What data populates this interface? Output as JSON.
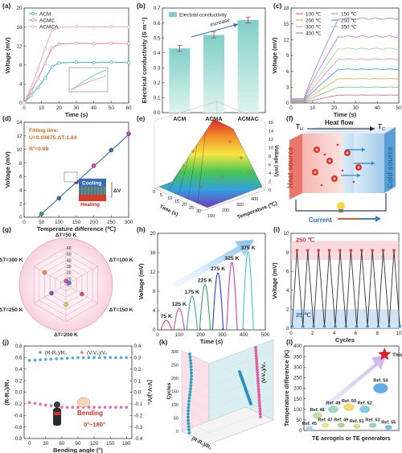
{
  "chart_data": [
    {
      "panel": "(a)",
      "type": "line",
      "ylabel": "Voltage (mV)",
      "xlabel": "Time (s)",
      "xlim": [
        0,
        60
      ],
      "ylim": [
        0,
        20
      ],
      "xticks": [
        0,
        10,
        20,
        30,
        40,
        50,
        60
      ],
      "yticks": [
        0,
        4,
        8,
        12,
        16,
        20
      ],
      "series": [
        {
          "name": "ACM",
          "color": "#3fb8c9",
          "x": [
            0,
            4,
            8,
            12,
            16,
            20,
            30,
            40,
            50,
            60
          ],
          "y": [
            0,
            1.6,
            3.3,
            5.2,
            7.6,
            8.4,
            8.6,
            8.5,
            8.6,
            8.5
          ]
        },
        {
          "name": "ACMC",
          "color": "#e58aa6",
          "x": [
            0,
            4,
            8,
            12,
            16,
            20,
            30,
            40,
            50,
            60
          ],
          "y": [
            0,
            2.4,
            5.2,
            8.3,
            11.6,
            12.4,
            12.6,
            12.5,
            12.6,
            12.5
          ]
        },
        {
          "name": "ACMCA",
          "color": "#f3a9be",
          "x": [
            0,
            4,
            8,
            12,
            16,
            20,
            30,
            40,
            50,
            60
          ],
          "y": [
            0,
            3.2,
            7.2,
            11.4,
            15.3,
            15.9,
            16.1,
            16.0,
            16.1,
            16.0
          ]
        }
      ]
    },
    {
      "panel": "(b)",
      "type": "bar",
      "ylabel": "Electrical conductivity (S m⁻¹)",
      "legend": "Electrial conductivity",
      "annotation": "Increase",
      "categories": [
        "ACM",
        "ACMA",
        "ACMAC"
      ],
      "values": [
        0.43,
        0.52,
        0.62
      ],
      "errors": [
        0.02,
        0.02,
        0.02
      ],
      "ylim": [
        0,
        0.7
      ],
      "yticks": [
        0,
        0.1,
        0.2,
        0.3,
        0.4,
        0.5,
        0.6,
        0.7
      ]
    },
    {
      "panel": "(c)",
      "type": "line",
      "ylabel": "Voltage (mV)",
      "xlabel": "Time (s)",
      "xlim": [
        0,
        50
      ],
      "ylim": [
        0,
        18
      ],
      "xticks": [
        0,
        10,
        20,
        30,
        40,
        50
      ],
      "yticks": [
        0,
        3,
        6,
        9,
        12,
        15,
        18
      ],
      "series": [
        {
          "name": "100 ℃",
          "color": "#e06aa6",
          "plateau": 1.5
        },
        {
          "name": "150 ℃",
          "color": "#7fc97f",
          "plateau": 3.0
        },
        {
          "name": "200 ℃",
          "color": "#f0b04a",
          "plateau": 4.6
        },
        {
          "name": "250 ℃",
          "color": "#3f9de0",
          "plateau": 6.4
        },
        {
          "name": "300 ℃",
          "color": "#ef8ec8",
          "plateau": 8.3
        },
        {
          "name": "350 ℃",
          "color": "#9be0a0",
          "plateau": 10.3
        },
        {
          "name": "400 ℃",
          "color": "#c07ad8",
          "plateau": 12.6
        },
        {
          "name": "",
          "color": "#9c8fd9",
          "plateau": 16.0
        }
      ]
    },
    {
      "panel": "(d)",
      "type": "scatter",
      "ylabel": "Voltage (mV)",
      "xlabel": "Temperature difference (℃)",
      "xlim": [
        0,
        300
      ],
      "ylim": [
        0,
        14
      ],
      "xticks": [
        0,
        50,
        100,
        150,
        200,
        250,
        300
      ],
      "yticks": [
        0,
        2,
        4,
        6,
        8,
        10,
        12,
        14
      ],
      "fit_text": "Fitting line:",
      "fit_eq": "U=0.04675 ΔT-1.84",
      "r2": "R²=0.99",
      "cooling": "Cooling",
      "heating": "Heating",
      "dv": "ΔV",
      "points": [
        {
          "x": 50,
          "y": 0.5,
          "color": "#2ea65a"
        },
        {
          "x": 100,
          "y": 2.8,
          "color": "#2c6fbf"
        },
        {
          "x": 150,
          "y": 5.2,
          "color": "#6a3fb0"
        },
        {
          "x": 200,
          "y": 7.6,
          "color": "#d94aa8"
        },
        {
          "x": 250,
          "y": 9.9,
          "color": "#2c6fbf"
        },
        {
          "x": 300,
          "y": 12.3,
          "color": "#c43fd0"
        }
      ],
      "fit": {
        "slope": 0.04675,
        "intercept": -1.84
      }
    },
    {
      "panel": "(e)",
      "type": "surface",
      "zlabel": "Voltage (mV)",
      "xlabel": "Temperature (℃)",
      "ylabel": "Time (s)",
      "zticks": [
        0,
        2,
        4,
        6,
        8,
        10,
        12,
        14,
        16
      ],
      "xticks": [
        100,
        200,
        300,
        400
      ],
      "yticks": [
        0,
        5,
        10,
        15,
        20,
        25,
        30
      ]
    },
    {
      "panel": "(f)",
      "type": "diagram",
      "th": "T",
      "th_sub": "H",
      "tc": "T",
      "tc_sub": "C",
      "heat_flow": "Heat flow",
      "heat_source": "Heat source",
      "cold_source": "Cold source",
      "current": "Current"
    },
    {
      "panel": "(g)",
      "type": "radar",
      "axes": [
        "ΔT=50 K",
        "ΔT=100 K",
        "ΔT=150 K",
        "ΔT=200 K",
        "ΔT=250 K",
        "ΔT=300 K"
      ],
      "rticks": [
        0,
        10,
        20,
        30,
        40,
        50,
        60
      ],
      "points": [
        {
          "axis": 0,
          "r": 6,
          "color": "#d94aa8"
        },
        {
          "axis": 1,
          "r": 6,
          "color": "#4a7fe0"
        },
        {
          "axis": 2,
          "r": 30,
          "color": "#e04a4a"
        },
        {
          "axis": 3,
          "r": 32,
          "color": "#e6d23a"
        },
        {
          "axis": 4,
          "r": 27,
          "color": "#8a3fd0"
        },
        {
          "axis": 5,
          "r": 40,
          "color": "#f08a3a"
        }
      ]
    },
    {
      "panel": "(h)",
      "type": "line",
      "ylabel": "Voltage (mV)",
      "xlabel": "Time (s)",
      "xlim": [
        0,
        500
      ],
      "ylim": [
        0,
        20
      ],
      "xticks": [
        0,
        100,
        200,
        300,
        400,
        500
      ],
      "yticks": [
        0,
        4,
        8,
        12,
        16,
        20
      ],
      "series": [
        {
          "name": "75 K",
          "color": "#e04a4a",
          "start": 15,
          "end": 65,
          "peak": 2.0
        },
        {
          "name": "125 K",
          "color": "#d94aa8",
          "start": 75,
          "end": 125,
          "peak": 4.5
        },
        {
          "name": "175 K",
          "color": "#3f9de0",
          "start": 135,
          "end": 185,
          "peak": 7.0
        },
        {
          "name": "225 K",
          "color": "#2ea65a",
          "start": 195,
          "end": 245,
          "peak": 9.4
        },
        {
          "name": "275 K",
          "color": "#2c3fbf",
          "start": 255,
          "end": 305,
          "peak": 11.8
        },
        {
          "name": "325 K",
          "color": "#c43fd0",
          "start": 320,
          "end": 370,
          "peak": 14.0
        },
        {
          "name": "375 K",
          "color": "#3fc9c0",
          "start": 395,
          "end": 445,
          "peak": 16.2
        }
      ]
    },
    {
      "panel": "(i)",
      "type": "line",
      "ylabel": "Voltage (mV)",
      "xlabel": "Cycles",
      "xlim": [
        0,
        10
      ],
      "ylim": [
        0,
        10
      ],
      "xticks": [
        0,
        2,
        4,
        6,
        8,
        10
      ],
      "yticks": [
        0,
        2,
        4,
        6,
        8,
        10
      ],
      "hot_label": "250 ℃",
      "cold_label": "25 ℃",
      "high": 8.2,
      "low": 0.2,
      "cycles": 10
    },
    {
      "panel": "(j)",
      "type": "scatter",
      "ylabel": "(R-R₀)/R₀",
      "ylabel2": "(V-V₀)/V₀",
      "xlabel": "Bending angle (°)",
      "xlim": [
        -10,
        190
      ],
      "ylim": [
        -0.8,
        0.8
      ],
      "ylim2": [
        -0.4,
        0.4
      ],
      "xticks": [
        0,
        30,
        60,
        90,
        120,
        150,
        180
      ],
      "yticks": [
        -0.8,
        -0.6,
        -0.4,
        -0.2,
        0.0,
        0.2,
        0.4,
        0.6,
        0.8
      ],
      "yticks2": [
        -0.4,
        -0.3,
        -0.2,
        -0.1,
        0.0,
        0.1,
        0.2,
        0.3,
        0.4
      ],
      "legend1": "(R-R₀)/R₀",
      "legend2": "(V-V₀)/V₀",
      "bending": "Bending",
      "range": "0°~180°"
    },
    {
      "panel": "(k)",
      "type": "scatter3d",
      "xlabel": "(R-R₀)/R₀",
      "ylabel": "(V-V₀)/V₀",
      "zlabel": "Cycles",
      "zticks": [
        0,
        50,
        100,
        150,
        200,
        250,
        300
      ]
    },
    {
      "panel": "(l)",
      "type": "bubble",
      "ylabel": "Temperature difference (K)",
      "xlabel": "TE aerogels or TE generators",
      "ylim": [
        0,
        400
      ],
      "yticks": [
        0,
        50,
        100,
        150,
        200,
        250,
        300,
        350,
        400
      ],
      "this_work": "This work",
      "refs": [
        {
          "name": "Ref. 45",
          "y": 10,
          "color": "#9ad0e0"
        },
        {
          "name": "Ref. 46",
          "y": 70,
          "color": "#b8dc8a"
        },
        {
          "name": "Ref. 47",
          "y": 25,
          "color": "#e8e070"
        },
        {
          "name": "Ref. 48",
          "y": 100,
          "color": "#8fd0b0"
        },
        {
          "name": "Ref. 49",
          "y": 25,
          "color": "#a8d080"
        },
        {
          "name": "Ref. 50",
          "y": 110,
          "color": "#f0d060"
        },
        {
          "name": "Ref. 51",
          "y": 20,
          "color": "#c0e070"
        },
        {
          "name": "Ref. 52",
          "y": 100,
          "color": "#70c0e0"
        },
        {
          "name": "Ref. 53",
          "y": 25,
          "color": "#80d0a0"
        },
        {
          "name": "Ref. 54",
          "y": 200,
          "color": "#3fa0e0"
        },
        {
          "name": "Ref. 55",
          "y": 15,
          "color": "#60b0e0"
        }
      ],
      "this_work_y": 360
    }
  ]
}
